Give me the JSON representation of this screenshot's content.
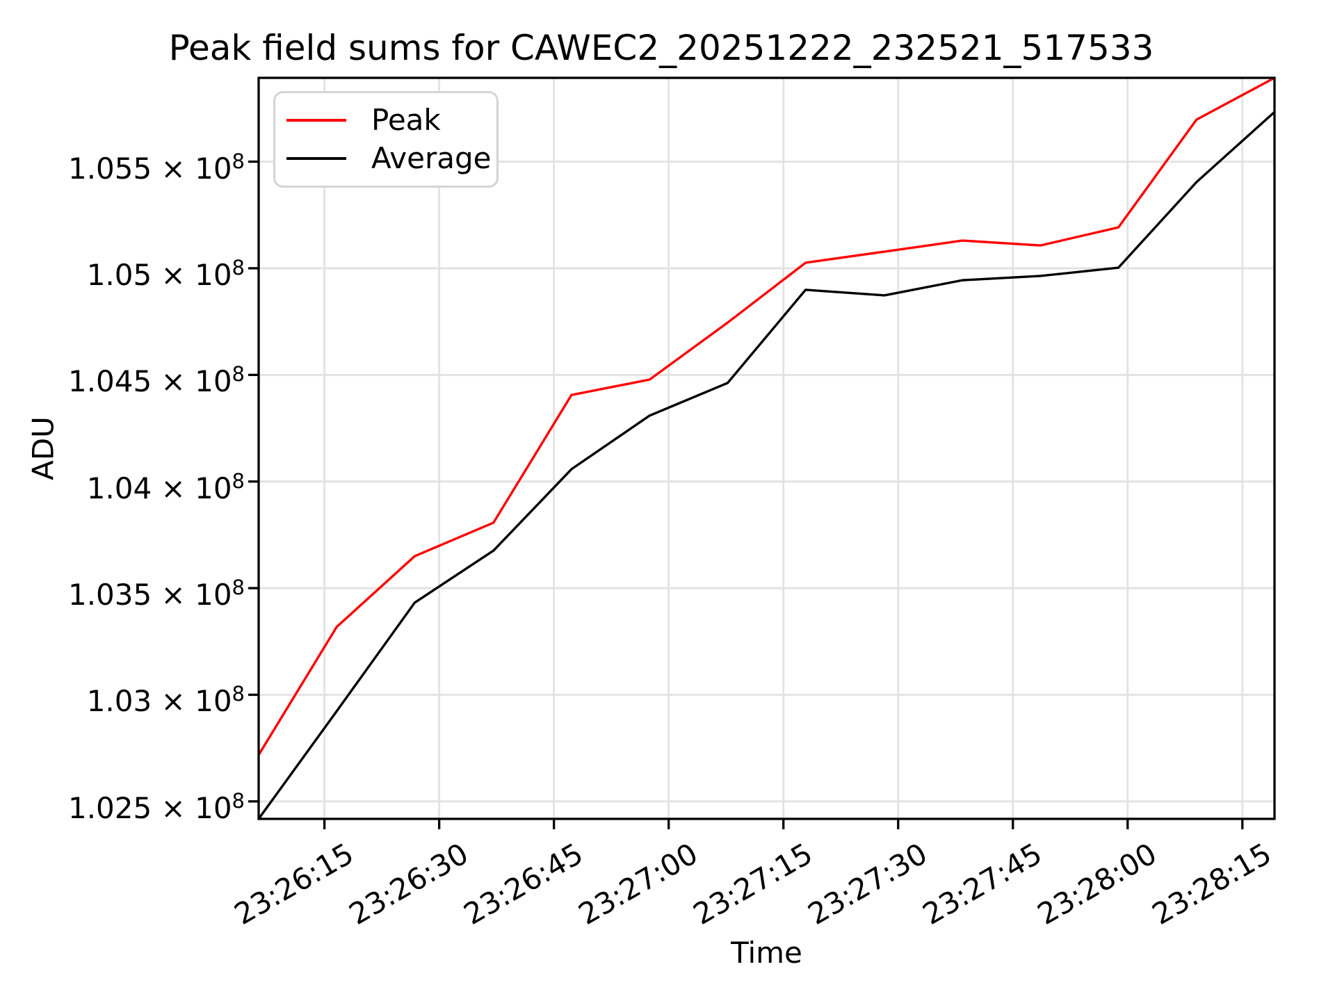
{
  "title": "Peak field sums for CAWEC2_20251222_232521_517533",
  "chart_data": {
    "type": "line",
    "title": "Peak field sums for CAWEC2_20251222_232521_517533",
    "xlabel": "Time",
    "ylabel": "ADU",
    "grid": true,
    "legend_position": "upper left",
    "x_times": [
      "23:26:06",
      "23:26:17",
      "23:26:27",
      "23:26:37",
      "23:26:47",
      "23:26:57",
      "23:27:08",
      "23:27:18",
      "23:27:28",
      "23:27:38",
      "23:27:49",
      "23:27:59",
      "23:28:09",
      "23:28:19"
    ],
    "x_seconds": [
      6.4,
      16.6,
      26.8,
      37.1,
      47.3,
      57.5,
      67.7,
      77.9,
      88.2,
      98.4,
      108.6,
      118.8,
      129.0,
      139.2
    ],
    "series": [
      {
        "name": "Peak",
        "color": "#ff0000",
        "values": [
          102718000,
          103318000,
          103650000,
          103807000,
          104406000,
          104478000,
          104745000,
          105026000,
          105078000,
          105130000,
          105107000,
          105192000,
          105697000,
          105893000
        ]
      },
      {
        "name": "Average",
        "color": "#000000",
        "values": [
          102418000,
          102923000,
          103432000,
          103676000,
          104058000,
          104309000,
          104462000,
          104899000,
          104873000,
          104944000,
          104964000,
          105003000,
          105404000,
          105733000
        ]
      }
    ],
    "xlim_seconds": [
      6.4,
      139.2
    ],
    "ylim": [
      102418000,
      105893000
    ],
    "xticks": [
      {
        "sec": 15,
        "label": "23:26:15"
      },
      {
        "sec": 30,
        "label": "23:26:30"
      },
      {
        "sec": 45,
        "label": "23:26:45"
      },
      {
        "sec": 60,
        "label": "23:27:00"
      },
      {
        "sec": 75,
        "label": "23:27:15"
      },
      {
        "sec": 90,
        "label": "23:27:30"
      },
      {
        "sec": 105,
        "label": "23:27:45"
      },
      {
        "sec": 120,
        "label": "23:28:00"
      },
      {
        "sec": 135,
        "label": "23:28:15"
      }
    ],
    "yticks": [
      {
        "value": 102500000,
        "base": "1.025 × 10",
        "exp": "8"
      },
      {
        "value": 103000000,
        "base": "1.03 × 10",
        "exp": "8"
      },
      {
        "value": 103500000,
        "base": "1.035 × 10",
        "exp": "8"
      },
      {
        "value": 104000000,
        "base": "1.04 × 10",
        "exp": "8"
      },
      {
        "value": 104500000,
        "base": "1.045 × 10",
        "exp": "8"
      },
      {
        "value": 105000000,
        "base": "1.05 × 10",
        "exp": "8"
      },
      {
        "value": 105500000,
        "base": "1.055 × 10",
        "exp": "8"
      }
    ],
    "colors": {
      "grid": "#e2e2e2",
      "spine": "#000000",
      "peak": "#ff0000",
      "average": "#000000"
    }
  },
  "legend": {
    "items": [
      {
        "label": "Peak"
      },
      {
        "label": "Average"
      }
    ]
  }
}
